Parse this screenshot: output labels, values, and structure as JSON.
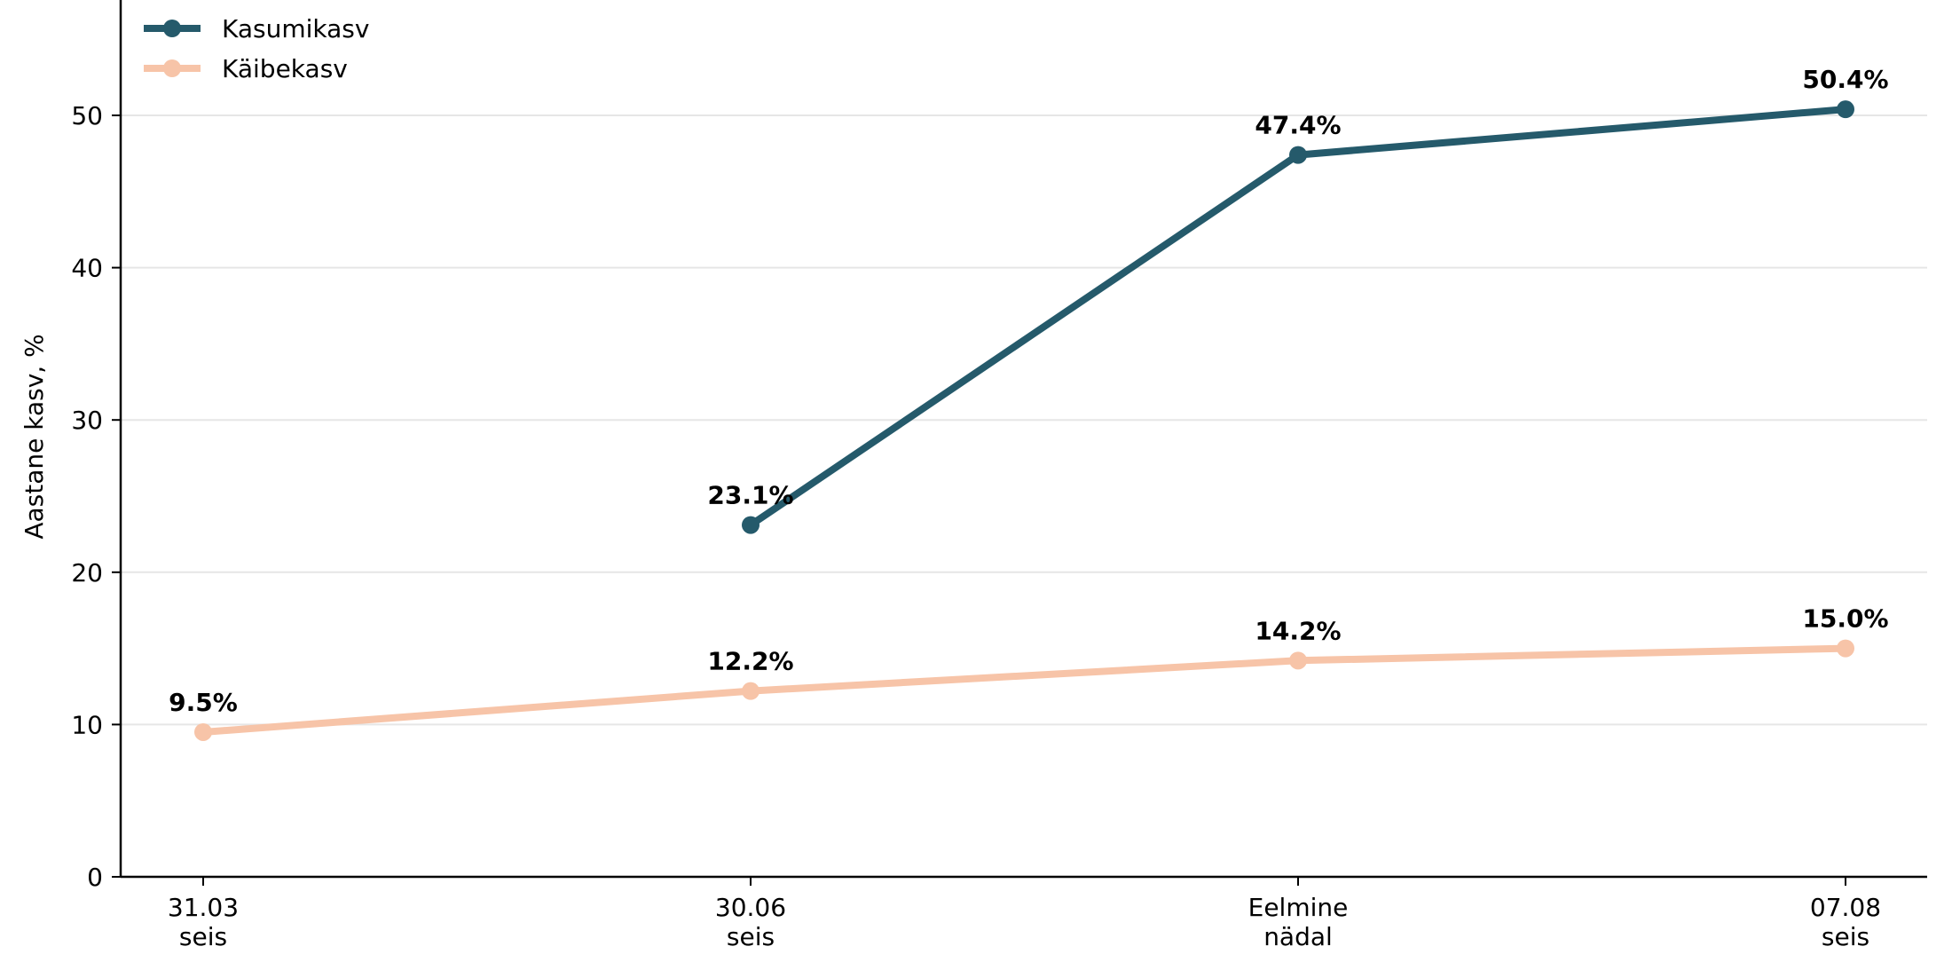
{
  "chart_data": {
    "type": "line",
    "title": "",
    "xlabel": "",
    "ylabel": "Aastane kasv, %",
    "categories": [
      [
        "31.03",
        "seis"
      ],
      [
        "30.06",
        "seis"
      ],
      [
        "Eelmine",
        "nädal"
      ],
      [
        "07.08",
        "seis"
      ]
    ],
    "ylim": [
      0,
      57
    ],
    "yticks": [
      0,
      10,
      20,
      30,
      40,
      50
    ],
    "grid": "horizontal",
    "legend_position": "top-left",
    "series": [
      {
        "name": "Kasumikasv",
        "color": "#255a6b",
        "values": [
          null,
          23.1,
          47.4,
          50.4
        ],
        "labels": [
          null,
          "23.1%",
          "47.4%",
          "50.4%"
        ]
      },
      {
        "name": "Käibekasv",
        "color": "#f7c4a8",
        "values": [
          9.5,
          12.2,
          14.2,
          15.0
        ],
        "labels": [
          "9.5%",
          "12.2%",
          "14.2%",
          "15.0%"
        ]
      }
    ]
  }
}
